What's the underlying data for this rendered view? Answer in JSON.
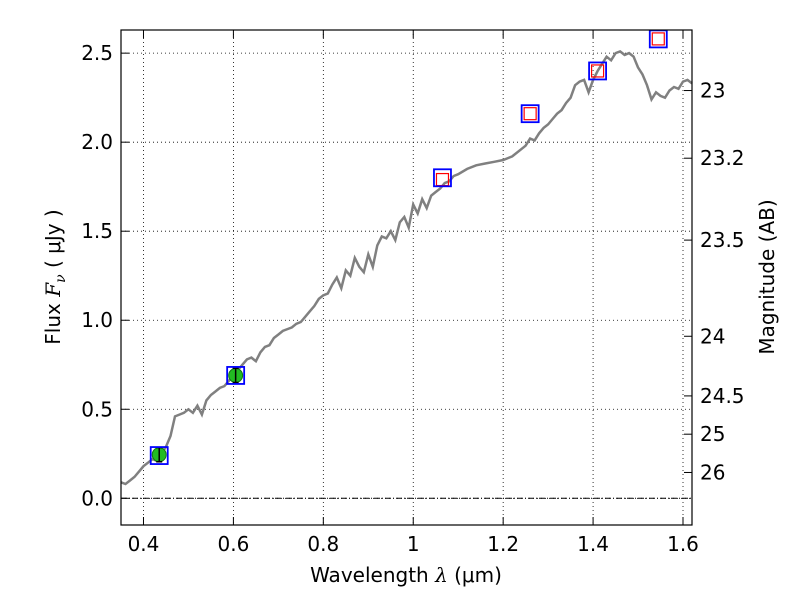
{
  "chart_data": {
    "type": "line",
    "xlabel": {
      "prefix": "Wavelength  ",
      "symbol": "λ",
      "unit": " (μm)"
    },
    "ylabel": {
      "prefix": "Flux  ",
      "symbol": "F",
      "subscript": "ν",
      "unit": "  ( μJy )"
    },
    "y2label": "Magnitude (AB)",
    "xlim": [
      0.35,
      1.62
    ],
    "ylim": [
      -0.15,
      2.63
    ],
    "grid": true,
    "grid_style": "dotted",
    "x_ticks": [
      {
        "value": 0.4,
        "label": "0.4"
      },
      {
        "value": 0.6,
        "label": "0.6"
      },
      {
        "value": 0.8,
        "label": "0.8"
      },
      {
        "value": 1.0,
        "label": "1"
      },
      {
        "value": 1.2,
        "label": "1.2"
      },
      {
        "value": 1.4,
        "label": "1.4"
      },
      {
        "value": 1.6,
        "label": "1.6"
      }
    ],
    "y_ticks": [
      {
        "value": 0.0,
        "label": "0.0"
      },
      {
        "value": 0.5,
        "label": "0.5"
      },
      {
        "value": 1.0,
        "label": "1.0"
      },
      {
        "value": 1.5,
        "label": "1.5"
      },
      {
        "value": 2.0,
        "label": "2.0"
      },
      {
        "value": 2.5,
        "label": "2.5"
      }
    ],
    "magnitude_ticks": [
      {
        "label": "23",
        "flux": 2.29
      },
      {
        "label": "23.2",
        "flux": 1.91
      },
      {
        "label": "23.5",
        "flux": 1.45
      },
      {
        "label": "24",
        "flux": 0.91
      },
      {
        "label": "24.5",
        "flux": 0.575
      },
      {
        "label": "25",
        "flux": 0.36
      },
      {
        "label": "26",
        "flux": 0.145
      }
    ],
    "colors": {
      "spectrum": "#808080",
      "model_box": "#0000ff",
      "observed_box": "#ff0000",
      "photometry_point": "#22bb22",
      "zero_line": "#000000"
    },
    "spectrum": {
      "x": [
        0.35,
        0.36,
        0.37,
        0.38,
        0.39,
        0.4,
        0.41,
        0.42,
        0.43,
        0.44,
        0.45,
        0.46,
        0.47,
        0.48,
        0.49,
        0.5,
        0.51,
        0.52,
        0.53,
        0.54,
        0.55,
        0.56,
        0.57,
        0.58,
        0.59,
        0.6,
        0.61,
        0.62,
        0.63,
        0.64,
        0.65,
        0.66,
        0.67,
        0.68,
        0.69,
        0.7,
        0.71,
        0.72,
        0.73,
        0.74,
        0.75,
        0.76,
        0.77,
        0.78,
        0.79,
        0.8,
        0.81,
        0.82,
        0.83,
        0.84,
        0.85,
        0.86,
        0.87,
        0.88,
        0.89,
        0.9,
        0.91,
        0.92,
        0.93,
        0.94,
        0.95,
        0.96,
        0.97,
        0.98,
        0.99,
        1.0,
        1.01,
        1.02,
        1.03,
        1.04,
        1.05,
        1.06,
        1.07,
        1.08,
        1.09,
        1.1,
        1.12,
        1.14,
        1.16,
        1.18,
        1.2,
        1.22,
        1.24,
        1.25,
        1.26,
        1.27,
        1.28,
        1.29,
        1.3,
        1.31,
        1.32,
        1.33,
        1.34,
        1.35,
        1.36,
        1.37,
        1.38,
        1.39,
        1.4,
        1.41,
        1.42,
        1.43,
        1.44,
        1.45,
        1.46,
        1.47,
        1.48,
        1.49,
        1.5,
        1.51,
        1.52,
        1.53,
        1.54,
        1.55,
        1.56,
        1.57,
        1.58,
        1.59,
        1.6,
        1.61,
        1.62
      ],
      "y": [
        0.09,
        0.08,
        0.1,
        0.12,
        0.15,
        0.18,
        0.2,
        0.22,
        0.21,
        0.25,
        0.29,
        0.35,
        0.46,
        0.47,
        0.48,
        0.5,
        0.48,
        0.52,
        0.47,
        0.55,
        0.58,
        0.6,
        0.62,
        0.63,
        0.66,
        0.7,
        0.72,
        0.75,
        0.78,
        0.79,
        0.77,
        0.82,
        0.85,
        0.86,
        0.9,
        0.92,
        0.94,
        0.95,
        0.96,
        0.98,
        0.99,
        1.02,
        1.05,
        1.08,
        1.12,
        1.14,
        1.15,
        1.2,
        1.24,
        1.18,
        1.28,
        1.25,
        1.35,
        1.3,
        1.27,
        1.37,
        1.3,
        1.42,
        1.47,
        1.46,
        1.5,
        1.45,
        1.55,
        1.58,
        1.52,
        1.65,
        1.6,
        1.68,
        1.63,
        1.7,
        1.72,
        1.74,
        1.77,
        1.78,
        1.81,
        1.82,
        1.85,
        1.87,
        1.88,
        1.89,
        1.9,
        1.92,
        1.96,
        1.98,
        2.02,
        2.01,
        2.05,
        2.08,
        2.1,
        2.13,
        2.16,
        2.18,
        2.22,
        2.25,
        2.32,
        2.34,
        2.35,
        2.28,
        2.35,
        2.4,
        2.44,
        2.48,
        2.46,
        2.5,
        2.51,
        2.49,
        2.5,
        2.48,
        2.42,
        2.38,
        2.32,
        2.24,
        2.28,
        2.26,
        2.25,
        2.29,
        2.31,
        2.3,
        2.34,
        2.35,
        2.33
      ]
    },
    "photometry": {
      "x": [
        0.435,
        0.605
      ],
      "y": [
        0.245,
        0.69
      ],
      "yerr": [
        0.04,
        0.04
      ]
    },
    "model_fluxes": {
      "x": [
        0.435,
        0.605,
        1.065,
        1.26,
        1.41,
        1.545
      ],
      "y": [
        0.24,
        0.69,
        1.8,
        2.16,
        2.4,
        2.58
      ]
    },
    "observed_fluxes": {
      "x": [
        1.065,
        1.26,
        1.41,
        1.545
      ],
      "y": [
        1.79,
        2.16,
        2.4,
        2.58
      ]
    }
  }
}
